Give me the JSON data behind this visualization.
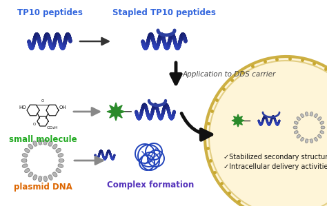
{
  "bg_color": "#ffffff",
  "cell_bg": "#fef5d8",
  "cell_border": "#c8a830",
  "helix_color1": "#2c3fa0",
  "helix_color2": "#1a2878",
  "green_star": "#2a8a2a",
  "small_mol_color": "#111111",
  "plasmid_color": "#aaaaaa",
  "complex_color": "#2244bb",
  "label_tp10": "#3366dd",
  "label_stapled": "#3366dd",
  "label_small": "#22aa22",
  "label_plasmid": "#dd6600",
  "label_complex": "#5533bb",
  "label_check": "#111111",
  "text_dds": "#444444",
  "arrow_color": "#333333",
  "arrow_gray": "#888888",
  "title": "TP10 peptides",
  "title2": "Stapled TP10 peptides",
  "label1": "small molecule",
  "label2": "plasmid DNA",
  "label3": "Complex formation",
  "text_arrow": "Application to DDS carrier",
  "check1": "Stabilized secondary structure",
  "check2": "Intracellular delivery activities"
}
